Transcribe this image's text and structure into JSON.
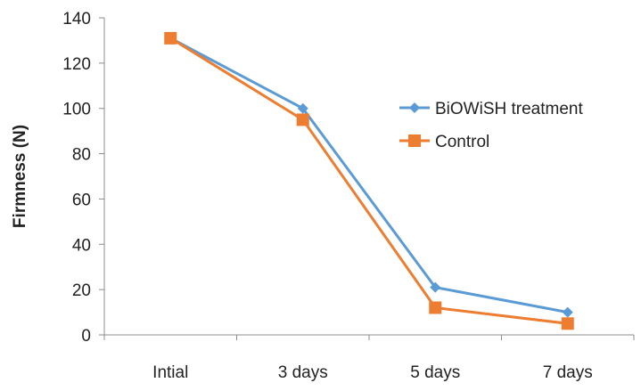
{
  "chart_data": {
    "type": "line",
    "title": "",
    "xlabel": "",
    "ylabel": "Firmness (N)",
    "categories": [
      "Intial",
      "3 days",
      "5 days",
      "7 days"
    ],
    "ylim": [
      0,
      140
    ],
    "yticks": [
      0,
      20,
      40,
      60,
      80,
      100,
      120,
      140
    ],
    "grid": false,
    "legend_position": "right",
    "series": [
      {
        "name": "BiOWiSH treatment",
        "values": [
          131,
          100,
          21,
          10
        ],
        "color": "#5b9bd5",
        "marker": "diamond"
      },
      {
        "name": "Control",
        "values": [
          131,
          95,
          12,
          5
        ],
        "color": "#ed7d31",
        "marker": "square"
      }
    ]
  }
}
